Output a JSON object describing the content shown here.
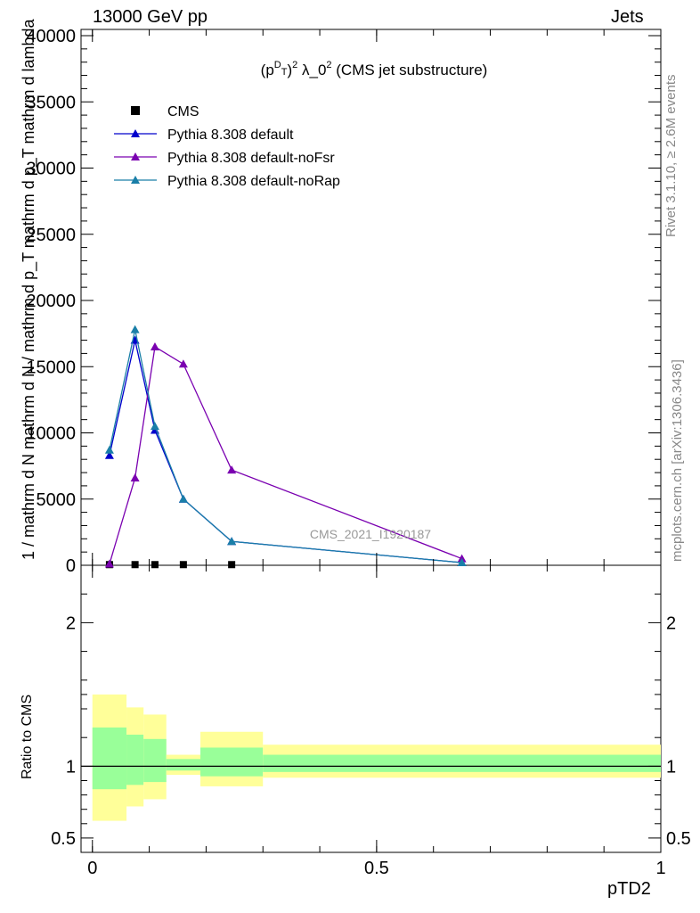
{
  "header": {
    "left": "13000 GeV pp",
    "right": "Jets"
  },
  "side_labels": {
    "rivet": "Rivet 3.1.10, ≥ 2.6M events",
    "mcplots": "mcplots.cern.ch [arXiv:1306.3436]"
  },
  "colors": {
    "cms": "#000000",
    "default": "#0000cc",
    "noFsr": "#7a00b0",
    "noRap": "#1a7fa8",
    "band_inner": "#99ff99",
    "band_outer": "#ffff99"
  },
  "chart_data": [
    {
      "type": "line",
      "title": "(p_T^D)^2 λ_0^2 (CMS jet substructure)",
      "watermark": "CMS_2021_I1920187",
      "ylabel": "1 / mathrm d N  mathrm d N / mathrm d p_T mathrm d p_T mathrm d lambda",
      "ylim": [
        0,
        40000
      ],
      "xlim": [
        -0.02,
        1.0
      ],
      "yticks": [
        "0",
        "5000",
        "10000",
        "15000",
        "20000",
        "25000",
        "30000",
        "35000",
        "40000"
      ],
      "ytick_values": [
        0,
        5000,
        10000,
        15000,
        20000,
        25000,
        30000,
        35000,
        40000
      ],
      "legend_position": "top-left",
      "series": [
        {
          "name": "CMS",
          "marker": "square",
          "x": [
            0.03,
            0.075,
            0.11,
            0.16,
            0.245
          ],
          "y": [
            50,
            50,
            50,
            50,
            50
          ]
        },
        {
          "name": "Pythia 8.308 default",
          "marker": "triangle",
          "x": [
            0.03,
            0.075,
            0.11,
            0.16,
            0.245,
            0.65
          ],
          "y": [
            8300,
            17000,
            10200,
            5000,
            1800,
            200
          ]
        },
        {
          "name": "Pythia 8.308 default-noFsr",
          "marker": "triangle",
          "x": [
            0.03,
            0.075,
            0.11,
            0.16,
            0.245,
            0.65
          ],
          "y": [
            100,
            6600,
            16500,
            15200,
            7200,
            500
          ]
        },
        {
          "name": "Pythia 8.308 default-noRap",
          "marker": "triangle",
          "x": [
            0.03,
            0.075,
            0.11,
            0.16,
            0.245,
            0.65
          ],
          "y": [
            8700,
            17800,
            10500,
            5000,
            1800,
            200
          ]
        }
      ]
    },
    {
      "type": "area",
      "ylabel": "Ratio to CMS",
      "xlabel": "pTD2",
      "ylim": [
        0.4,
        2.4
      ],
      "yticks": [
        "0.5",
        "1",
        "2"
      ],
      "ytick_values": [
        0.5,
        1,
        2
      ],
      "xticks": [
        "0",
        "0.5",
        "1"
      ],
      "xtick_values": [
        0,
        0.5,
        1
      ],
      "bins": [
        {
          "x0": 0.0,
          "x1": 0.06,
          "inner": [
            0.84,
            1.27
          ],
          "outer": [
            0.62,
            1.5
          ]
        },
        {
          "x0": 0.06,
          "x1": 0.09,
          "inner": [
            0.87,
            1.22
          ],
          "outer": [
            0.72,
            1.41
          ]
        },
        {
          "x0": 0.09,
          "x1": 0.13,
          "inner": [
            0.89,
            1.19
          ],
          "outer": [
            0.77,
            1.36
          ]
        },
        {
          "x0": 0.13,
          "x1": 0.19,
          "inner": [
            0.97,
            1.05
          ],
          "outer": [
            0.94,
            1.08
          ]
        },
        {
          "x0": 0.19,
          "x1": 0.3,
          "inner": [
            0.93,
            1.13
          ],
          "outer": [
            0.86,
            1.24
          ]
        },
        {
          "x0": 0.3,
          "x1": 1.0,
          "inner": [
            0.96,
            1.08
          ],
          "outer": [
            0.92,
            1.15
          ]
        }
      ],
      "reference": 1.0
    }
  ]
}
